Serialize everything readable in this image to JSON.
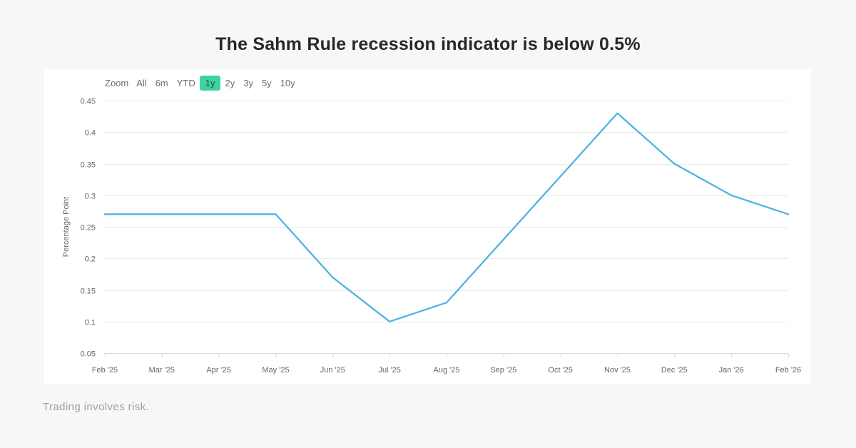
{
  "page": {
    "title": "The Sahm Rule recession indicator is below 0.5%",
    "footer_note": "Trading involves risk.",
    "background_color": "#f7f7f7"
  },
  "toolbar": {
    "zoom_label": "Zoom",
    "buttons": [
      {
        "label": "All",
        "selected": false
      },
      {
        "label": "6m",
        "selected": false
      },
      {
        "label": "YTD",
        "selected": false
      },
      {
        "label": "1y",
        "selected": true
      },
      {
        "label": "2y",
        "selected": false
      },
      {
        "label": "3y",
        "selected": false
      },
      {
        "label": "5y",
        "selected": false
      },
      {
        "label": "10y",
        "selected": false
      }
    ],
    "selected_color": "#3ed3a4"
  },
  "chart_data": {
    "type": "line",
    "title": "",
    "x": [
      "Feb '25",
      "Mar '25",
      "Apr '25",
      "May '25",
      "Jun '25",
      "Jul '25",
      "Aug '25",
      "Sep '25",
      "Oct '25",
      "Nov '25",
      "Dec '25",
      "Jan '26",
      "Feb '26"
    ],
    "values": [
      0.27,
      0.27,
      0.27,
      0.27,
      0.17,
      0.1,
      0.13,
      0.23,
      0.33,
      0.43,
      0.35,
      0.3,
      0.27
    ],
    "ylabel": "Percentage Point",
    "ylim": [
      0.05,
      0.45
    ],
    "yticks": [
      "0.05",
      "0.1",
      "0.15",
      "0.2",
      "0.25",
      "0.3",
      "0.35",
      "0.4",
      "0.45"
    ],
    "grid": true,
    "legend": "none",
    "line_color": "#4db2e2",
    "grid_color": "#ebebeb",
    "axis_color": "#d9d9d9",
    "label_color": "#666666"
  }
}
